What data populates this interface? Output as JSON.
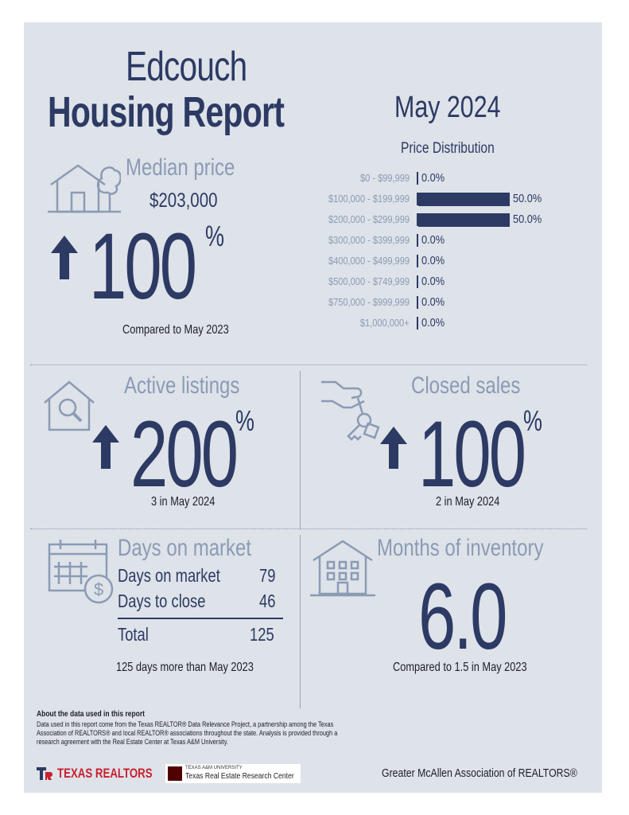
{
  "header": {
    "city": "Edcouch",
    "title": "Housing Report",
    "month": "May 2024"
  },
  "price_distribution": {
    "title": "Price Distribution",
    "rows": [
      {
        "label": "$0 - $99,999",
        "value": "0.0%",
        "share": 0
      },
      {
        "label": "$100,000 - $199,999",
        "value": "50.0%",
        "share": 50
      },
      {
        "label": "$200,000 - $299,999",
        "value": "50.0%",
        "share": 50
      },
      {
        "label": "$300,000 - $399,999",
        "value": "0.0%",
        "share": 0
      },
      {
        "label": "$400,000 - $499,999",
        "value": "0.0%",
        "share": 0
      },
      {
        "label": "$500,000 - $749,999",
        "value": "0.0%",
        "share": 0
      },
      {
        "label": "$750,000 - $999,999",
        "value": "0.0%",
        "share": 0
      },
      {
        "label": "$1,000,000+",
        "value": "0.0%",
        "share": 0
      }
    ]
  },
  "median_price": {
    "heading": "Median price",
    "value": "$203,000",
    "change": "100",
    "unit": "%",
    "note": "Compared to May 2023"
  },
  "active_listings": {
    "heading": "Active listings",
    "change": "200",
    "unit": "%",
    "note": "3 in May 2024"
  },
  "closed_sales": {
    "heading": "Closed sales",
    "change": "100",
    "unit": "%",
    "note": "2 in May 2024"
  },
  "days_on_market": {
    "heading": "Days on market",
    "rows": [
      {
        "label": "Days on market",
        "value": "79"
      },
      {
        "label": "Days to close",
        "value": "46"
      }
    ],
    "total_label": "Total",
    "total_value": "125",
    "note": "125 days more than May 2023"
  },
  "months_inventory": {
    "heading": "Months of inventory",
    "value": "6.0",
    "note": "Compared to 1.5 in May 2023"
  },
  "footer": {
    "about_title": "About the data used in this report",
    "about_text": "Data used in this report come from the Texas REALTOR® Data Relevance Project, a partnership among the Texas Association of REALTORS® and local REALTOR® associations throughout the state. Analysis is provided through a research agreement with the Real Estate Center at Texas A&M University.",
    "logo_texas_realtors": "TEXAS REALTORS",
    "logo_tamu_small": "TEXAS A&M UNIVERSITY",
    "logo_tamu": "Texas Real Estate Research Center",
    "association": "Greater McAllen Association of REALTORS®"
  },
  "colors": {
    "navy": "#2c3a64",
    "slate": "#8a9bb5",
    "panel": "#dee2e9",
    "red": "#c8202f"
  }
}
